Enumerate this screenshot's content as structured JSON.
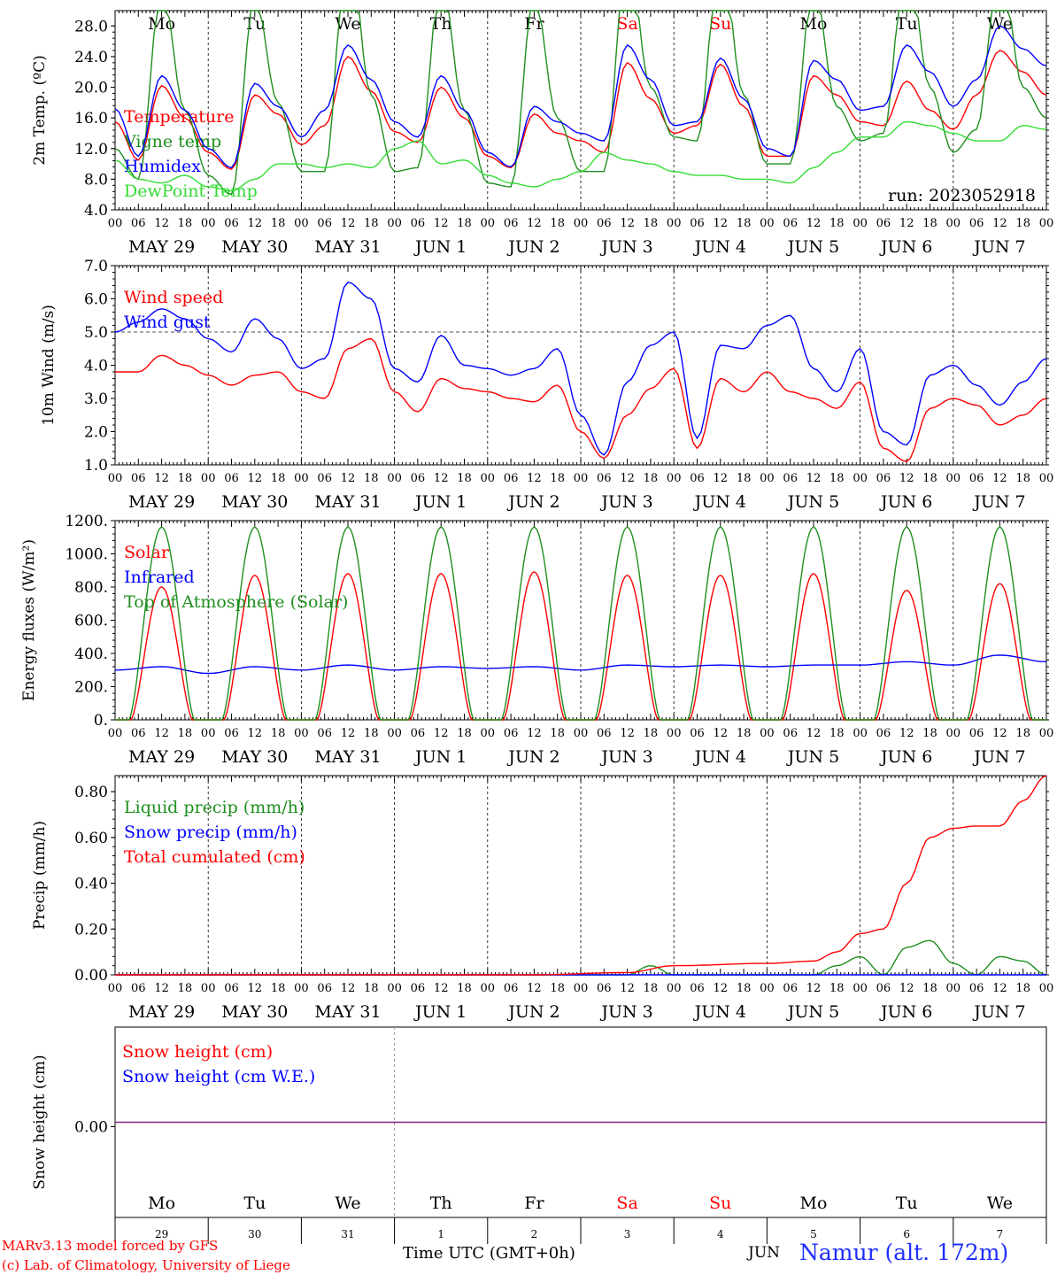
{
  "run_label": "run: 2023052918",
  "footer": {
    "model_line": "MARv3.13 model forced by GFS",
    "credit_line": "(c) Lab. of Climatology, University of Liege",
    "time_axis_label": "Time UTC (GMT+0h)",
    "month_label": "JUN",
    "station_label": "Namur (alt. 172m)"
  },
  "colors": {
    "red": "#ff0000",
    "blue": "#0000ff",
    "green": "#1f8f1f",
    "lightgreen": "#33dd33",
    "purple": "#7f1f7f"
  },
  "days": [
    {
      "dow": "Mo",
      "date_label": "MAY 29",
      "num": "29",
      "weekend": false
    },
    {
      "dow": "Tu",
      "date_label": "MAY 30",
      "num": "30",
      "weekend": false
    },
    {
      "dow": "We",
      "date_label": "MAY 31",
      "num": "31",
      "weekend": false
    },
    {
      "dow": "Th",
      "date_label": "JUN  1",
      "num": "1",
      "weekend": false
    },
    {
      "dow": "Fr",
      "date_label": "JUN  2",
      "num": "2",
      "weekend": false
    },
    {
      "dow": "Sa",
      "date_label": "JUN  3",
      "num": "3",
      "weekend": true
    },
    {
      "dow": "Su",
      "date_label": "JUN  4",
      "num": "4",
      "weekend": true
    },
    {
      "dow": "Mo",
      "date_label": "JUN  5",
      "num": "5",
      "weekend": false
    },
    {
      "dow": "Tu",
      "date_label": "JUN  6",
      "num": "6",
      "weekend": false
    },
    {
      "dow": "We",
      "date_label": "JUN  7",
      "num": "7",
      "weekend": false
    }
  ],
  "hour_ticks": [
    "00",
    "06",
    "12",
    "18"
  ],
  "chart_data": [
    {
      "type": "line",
      "ylabel": "2m Temp. (ºC)",
      "ylim": [
        4.0,
        30.0
      ],
      "yticks": [
        "4.0",
        "8.0",
        "12.0",
        "16.0",
        "20.0",
        "24.0",
        "28.0"
      ],
      "x_unit": "hours since May 29 00 UTC",
      "series": [
        {
          "name": "Temperature",
          "color": "red",
          "x": [
            0,
            6,
            12,
            18,
            24,
            30,
            36,
            42,
            48,
            54,
            60,
            66,
            72,
            78,
            84,
            90,
            96,
            102,
            108,
            114,
            120,
            126,
            132,
            138,
            144,
            150,
            156,
            162,
            168,
            174,
            180,
            186,
            192,
            198,
            204,
            210,
            216,
            222,
            228,
            234,
            240
          ],
          "values": [
            15.5,
            10.5,
            20.2,
            16.0,
            11.5,
            9.3,
            19.0,
            16.5,
            12.5,
            15.0,
            24.0,
            19.5,
            14.2,
            12.8,
            20.0,
            16.0,
            11.0,
            9.5,
            16.5,
            14.0,
            13.0,
            11.5,
            23.2,
            18.5,
            14.0,
            15.0,
            23.0,
            17.5,
            11.0,
            11.0,
            21.5,
            19.0,
            15.5,
            15.0,
            20.8,
            17.0,
            14.5,
            19.0,
            24.8,
            22.0,
            19.0
          ]
        },
        {
          "name": "Vigne temp",
          "color": "green",
          "x": [
            0,
            6,
            12,
            18,
            24,
            30,
            36,
            42,
            48,
            54,
            60,
            66,
            72,
            78,
            84,
            90,
            96,
            102,
            108,
            114,
            120,
            126,
            132,
            138,
            144,
            150,
            156,
            162,
            168,
            174,
            180,
            186,
            192,
            198,
            204,
            210,
            216,
            222,
            228,
            234,
            240
          ],
          "values": [
            12.0,
            8.0,
            33.0,
            17.0,
            8.5,
            6.0,
            32.0,
            18.0,
            9.0,
            9.0,
            40.0,
            19.0,
            9.0,
            9.5,
            34.0,
            17.0,
            7.5,
            7.0,
            32.0,
            16.0,
            9.0,
            9.0,
            38.0,
            20.0,
            13.5,
            13.0,
            38.0,
            19.0,
            10.0,
            10.0,
            33.5,
            17.5,
            13.0,
            14.0,
            38.0,
            20.0,
            11.5,
            14.5,
            37.0,
            20.0,
            16.0
          ]
        },
        {
          "name": "Humidex",
          "color": "blue",
          "x": [
            0,
            6,
            12,
            18,
            24,
            30,
            36,
            42,
            48,
            54,
            60,
            66,
            72,
            78,
            84,
            90,
            96,
            102,
            108,
            114,
            120,
            126,
            132,
            138,
            144,
            150,
            156,
            162,
            168,
            174,
            180,
            186,
            192,
            198,
            204,
            210,
            216,
            222,
            228,
            234,
            240
          ],
          "values": [
            17.2,
            11.0,
            21.5,
            17.0,
            12.0,
            9.5,
            20.5,
            17.5,
            13.5,
            17.0,
            25.5,
            21.0,
            15.5,
            13.5,
            21.5,
            17.0,
            11.5,
            9.6,
            17.5,
            15.5,
            14.0,
            13.0,
            25.5,
            21.0,
            15.0,
            15.5,
            23.8,
            18.5,
            12.0,
            11.0,
            23.5,
            21.0,
            17.0,
            17.5,
            25.5,
            22.0,
            17.5,
            21.0,
            28.0,
            25.0,
            22.8
          ]
        },
        {
          "name": "DewPoint Temp",
          "color": "lightgreen",
          "x": [
            0,
            6,
            12,
            18,
            24,
            30,
            36,
            42,
            48,
            54,
            60,
            66,
            72,
            78,
            84,
            90,
            96,
            102,
            108,
            114,
            120,
            126,
            132,
            138,
            144,
            150,
            156,
            162,
            168,
            174,
            180,
            186,
            192,
            198,
            204,
            210,
            216,
            222,
            228,
            234,
            240
          ],
          "values": [
            10.5,
            8.0,
            7.5,
            8.5,
            7.0,
            6.5,
            8.0,
            10.0,
            10.0,
            9.5,
            10.0,
            9.5,
            12.0,
            13.0,
            10.0,
            10.5,
            8.5,
            7.5,
            7.0,
            8.0,
            9.0,
            11.5,
            10.5,
            10.0,
            9.0,
            8.5,
            8.5,
            8.0,
            8.0,
            7.5,
            9.5,
            11.5,
            13.5,
            13.5,
            15.5,
            15.0,
            14.0,
            13.0,
            13.0,
            15.0,
            14.5
          ]
        }
      ]
    },
    {
      "type": "line",
      "ylabel": "10m Wind (m/s)",
      "ylim": [
        1.0,
        7.0
      ],
      "yticks": [
        "1.0",
        "2.0",
        "3.0",
        "4.0",
        "5.0",
        "6.0",
        "7.0"
      ],
      "reference_line": 5.0,
      "series": [
        {
          "name": "Wind speed",
          "color": "red",
          "x": [
            0,
            6,
            12,
            18,
            24,
            30,
            36,
            42,
            48,
            54,
            60,
            66,
            72,
            78,
            84,
            90,
            96,
            102,
            108,
            114,
            120,
            126,
            132,
            138,
            144,
            150,
            156,
            162,
            168,
            174,
            180,
            186,
            192,
            198,
            204,
            210,
            216,
            222,
            228,
            234,
            240
          ],
          "values": [
            3.8,
            3.8,
            4.3,
            4.0,
            3.7,
            3.4,
            3.7,
            3.8,
            3.2,
            3.0,
            4.5,
            4.8,
            3.2,
            2.6,
            3.6,
            3.3,
            3.2,
            3.0,
            2.9,
            3.4,
            2.0,
            1.2,
            2.5,
            3.3,
            3.9,
            1.5,
            3.6,
            3.2,
            3.8,
            3.2,
            3.0,
            2.7,
            3.5,
            1.5,
            1.1,
            2.7,
            3.0,
            2.8,
            2.2,
            2.5,
            3.0
          ]
        },
        {
          "name": "Wind gust",
          "color": "blue",
          "x": [
            0,
            6,
            12,
            18,
            24,
            30,
            36,
            42,
            48,
            54,
            60,
            66,
            72,
            78,
            84,
            90,
            96,
            102,
            108,
            114,
            120,
            126,
            132,
            138,
            144,
            150,
            156,
            162,
            168,
            174,
            180,
            186,
            192,
            198,
            204,
            210,
            216,
            222,
            228,
            234,
            240
          ],
          "values": [
            5.0,
            5.3,
            5.7,
            5.4,
            4.8,
            4.4,
            5.4,
            4.8,
            3.9,
            4.2,
            6.5,
            6.0,
            3.9,
            3.5,
            4.9,
            4.0,
            3.9,
            3.7,
            3.9,
            4.5,
            2.5,
            1.3,
            3.5,
            4.6,
            5.0,
            1.8,
            4.6,
            4.5,
            5.2,
            5.5,
            3.9,
            3.2,
            4.5,
            2.0,
            1.6,
            3.7,
            4.0,
            3.4,
            2.8,
            3.5,
            4.2
          ]
        }
      ]
    },
    {
      "type": "line",
      "ylabel": "Energy fluxes (W/m²)",
      "ylim": [
        0,
        1200
      ],
      "yticks": [
        "0.",
        "200.",
        "400.",
        "600.",
        "800.",
        "1000.",
        "1200."
      ],
      "series": [
        {
          "name": "Solar",
          "color": "red",
          "daily_peak": [
            800,
            870,
            880,
            880,
            890,
            870,
            870,
            880,
            780,
            820
          ],
          "sunrise_hour": 4,
          "sunset_hour": 20
        },
        {
          "name": "Infrared",
          "color": "blue",
          "x": [
            0,
            12,
            24,
            36,
            48,
            60,
            72,
            84,
            96,
            108,
            120,
            132,
            144,
            156,
            168,
            180,
            192,
            204,
            216,
            228,
            240
          ],
          "values": [
            300,
            320,
            280,
            320,
            300,
            330,
            300,
            320,
            310,
            320,
            300,
            330,
            320,
            330,
            320,
            330,
            330,
            350,
            330,
            390,
            350
          ]
        },
        {
          "name": "Top of Atmosphere (Solar)",
          "color": "green",
          "daily_peak": [
            1160,
            1160,
            1160,
            1160,
            1160,
            1160,
            1160,
            1160,
            1160,
            1160
          ],
          "sunrise_hour": 3.5,
          "sunset_hour": 20.5
        }
      ]
    },
    {
      "type": "line",
      "ylabel": "Precip (mm/h)",
      "ylim": [
        0.0,
        0.87
      ],
      "yticks": [
        "0.00",
        "0.20",
        "0.40",
        "0.60",
        "0.80"
      ],
      "series": [
        {
          "name": "Liquid precip (mm/h)",
          "color": "green",
          "x": [
            0,
            108,
            132,
            138,
            144,
            180,
            186,
            192,
            198,
            204,
            210,
            216,
            222,
            228,
            234,
            240
          ],
          "values": [
            0,
            0,
            0,
            0.04,
            0,
            0,
            0.04,
            0.08,
            0,
            0.12,
            0.15,
            0.05,
            0,
            0.08,
            0.06,
            0
          ]
        },
        {
          "name": "Snow precip (mm/h)",
          "color": "blue",
          "x": [
            0,
            240
          ],
          "values": [
            0,
            0
          ]
        },
        {
          "name": "Total cumulated (cm)",
          "color": "red",
          "x": [
            0,
            108,
            132,
            144,
            168,
            180,
            186,
            192,
            198,
            204,
            210,
            216,
            222,
            228,
            234,
            240
          ],
          "values": [
            0,
            0,
            0.01,
            0.04,
            0.05,
            0.06,
            0.1,
            0.18,
            0.2,
            0.4,
            0.6,
            0.64,
            0.65,
            0.65,
            0.76,
            0.87
          ]
        }
      ]
    },
    {
      "type": "line",
      "ylabel": "Snow height (cm)",
      "yticks": [
        "0.00"
      ],
      "series": [
        {
          "name": "Snow height (cm)",
          "color": "red"
        },
        {
          "name": "Snow height (cm W.E.)",
          "color": "blue"
        }
      ]
    }
  ]
}
